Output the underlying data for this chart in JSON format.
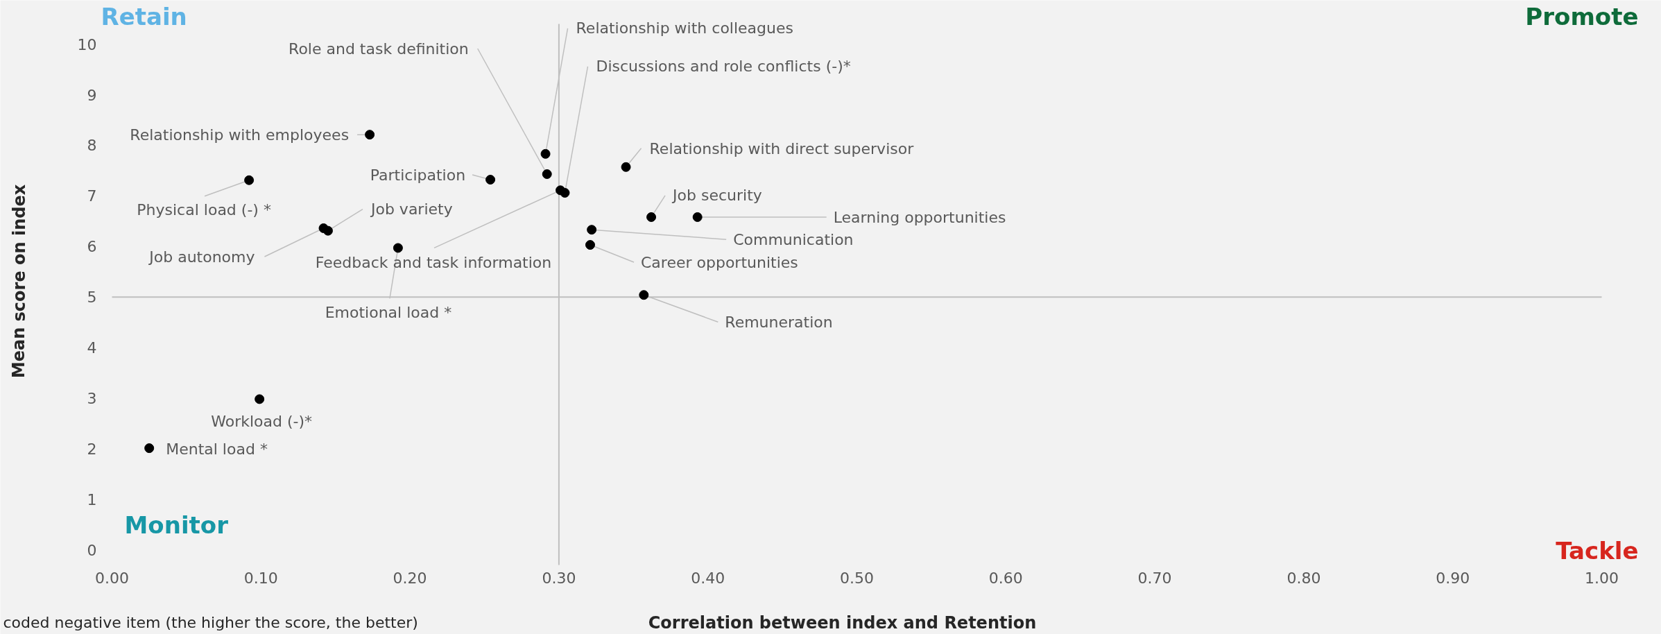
{
  "chart_data": {
    "type": "scatter",
    "xlabel": "Correlation between index and Retention",
    "ylabel": "Mean score on index",
    "xlim": [
      0,
      1
    ],
    "ylim": [
      -0.3,
      10.4
    ],
    "xticks": [
      {
        "value": 0,
        "label": "0.00"
      },
      {
        "value": 0.1,
        "label": "0.10"
      },
      {
        "value": 0.2,
        "label": "0.20"
      },
      {
        "value": 0.3,
        "label": "0.30"
      },
      {
        "value": 0.4,
        "label": "0.40"
      },
      {
        "value": 0.5,
        "label": "0.50"
      },
      {
        "value": 0.6,
        "label": "0.60"
      },
      {
        "value": 0.7,
        "label": "0.70"
      },
      {
        "value": 0.8,
        "label": "0.80"
      },
      {
        "value": 0.9,
        "label": "0.90"
      },
      {
        "value": 1,
        "label": "1.00"
      }
    ],
    "yticks": [
      0,
      1,
      2,
      3,
      4,
      5,
      6,
      7,
      8,
      9,
      10
    ],
    "grid": false,
    "marker": "circle",
    "series": [
      {
        "name": "Relationship with employees",
        "color": "#000000",
        "x": [
          0.173
        ],
        "values": [
          8.21
        ]
      },
      {
        "name": "Physical load (-) *",
        "color": "#000000",
        "x": [
          0.092
        ],
        "values": [
          7.31
        ]
      },
      {
        "name": "Participation",
        "color": "#000000",
        "x": [
          0.254
        ],
        "values": [
          7.32
        ]
      },
      {
        "name": "Role and task definition",
        "color": "#000000",
        "x": [
          0.292
        ],
        "values": [
          7.43
        ]
      },
      {
        "name": "Relationship with colleagues",
        "color": "#000000",
        "x": [
          0.291
        ],
        "values": [
          7.83
        ]
      },
      {
        "name": "Job autonomy",
        "color": "#000000",
        "x": [
          0.142
        ],
        "values": [
          6.36
        ]
      },
      {
        "name": "Job variety",
        "color": "#000000",
        "x": [
          0.145
        ],
        "values": [
          6.31
        ]
      },
      {
        "name": "Emotional load *",
        "color": "#000000",
        "x": [
          0.192
        ],
        "values": [
          5.97
        ]
      },
      {
        "name": "Feedback and task information",
        "color": "#000000",
        "x": [
          0.301
        ],
        "values": [
          7.11
        ]
      },
      {
        "name": "Discussions and role conflicts (-)*",
        "color": "#000000",
        "x": [
          0.304
        ],
        "values": [
          7.06
        ]
      },
      {
        "name": "Relationship with direct supervisor",
        "color": "#000000",
        "x": [
          0.345
        ],
        "values": [
          7.57
        ]
      },
      {
        "name": "Job security",
        "color": "#000000",
        "x": [
          0.362
        ],
        "values": [
          6.58
        ]
      },
      {
        "name": "Learning opportunities",
        "color": "#000000",
        "x": [
          0.393
        ],
        "values": [
          6.58
        ]
      },
      {
        "name": "Communication",
        "color": "#000000",
        "x": [
          0.322
        ],
        "values": [
          6.33
        ]
      },
      {
        "name": "Career opportunities",
        "color": "#000000",
        "x": [
          0.321
        ],
        "values": [
          6.03
        ]
      },
      {
        "name": "Remuneration",
        "color": "#000000",
        "x": [
          0.357
        ],
        "values": [
          5.04
        ]
      },
      {
        "name": "Workload (-)*",
        "color": "#000000",
        "x": [
          0.099
        ],
        "values": [
          2.98
        ]
      },
      {
        "name": "Mental load *",
        "color": "#000000",
        "x": [
          0.025
        ],
        "values": [
          2.01
        ]
      }
    ],
    "ref_lines": [
      {
        "axis": "x",
        "value": 0.3,
        "color": "#bfbfbf"
      },
      {
        "axis": "y",
        "value": 5,
        "color": "#bfbfbf"
      }
    ],
    "annotations": [
      "Retain",
      "Promote",
      "Monitor",
      "Tackle",
      "coded negative item (the higher the score, the better)"
    ]
  }
}
